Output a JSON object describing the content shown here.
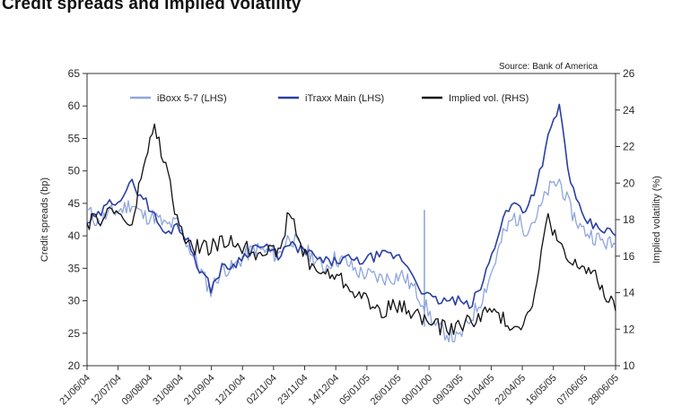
{
  "chart_data": {
    "type": "line",
    "title": "Credit spreads and implied volatility",
    "source": "Source: Bank of America",
    "ylabel_left": "Credit spreads (bp)",
    "ylabel_right": "Implied volatility (%)",
    "ylim_left": [
      20,
      65
    ],
    "ylim_right": [
      10,
      26
    ],
    "yticks_left": [
      20,
      25,
      30,
      35,
      40,
      45,
      50,
      55,
      60,
      65
    ],
    "yticks_right": [
      10,
      12,
      14,
      16,
      18,
      20,
      22,
      24,
      26
    ],
    "x_tick_labels": [
      "21/06/04",
      "12/07/04",
      "09/08/04",
      "31/08/04",
      "21/09/04",
      "12/10/04",
      "02/11/04",
      "23/11/04",
      "14/12/04",
      "05/01/05",
      "26/01/05",
      "00/01/00",
      "09/03/05",
      "01/04/05",
      "22/04/05",
      "16/05/05",
      "07/06/05",
      "28/06/05"
    ],
    "x_count": 18,
    "series": [
      {
        "name": "iBoxx 5-7 (LHS)",
        "axis": "left",
        "color": "#8fa6dc",
        "values": [
          44.0,
          42.0,
          43.5,
          44.0,
          45.0,
          43.0,
          43.0,
          41.5,
          42.0,
          38.5,
          35.0,
          31.5,
          35.0,
          35.0,
          37.0,
          38.0,
          37.5,
          37.0,
          40.0,
          38.0,
          37.0,
          35.0,
          36.5,
          36.0,
          34.5,
          34.0,
          33.5,
          33.5,
          34.0,
          32.0,
          29.5,
          26.0,
          25.0,
          24.0,
          27.0,
          30.0,
          34.5,
          40.0,
          43.0,
          41.0,
          43.0,
          47.0,
          48.5,
          44.0,
          41.0,
          40.0,
          39.0,
          38.5
        ],
        "spikes": [
          {
            "index": 30,
            "low": 26.0,
            "high": 44.0
          }
        ]
      },
      {
        "name": "iTraxx Main (LHS)",
        "axis": "left",
        "color": "#2b3fa3",
        "values": [
          42.0,
          43.0,
          45.0,
          46.0,
          48.0,
          46.0,
          43.0,
          40.0,
          42.0,
          39.0,
          35.0,
          32.0,
          35.0,
          35.5,
          37.0,
          38.5,
          38.0,
          37.0,
          38.5,
          38.0,
          37.0,
          36.0,
          36.0,
          36.5,
          36.0,
          36.5,
          37.0,
          37.0,
          36.5,
          34.0,
          31.0,
          30.0,
          30.0,
          30.0,
          29.0,
          32.0,
          37.0,
          43.0,
          45.0,
          44.0,
          48.0,
          55.0,
          60.0,
          48.0,
          43.0,
          41.5,
          41.0,
          40.0
        ]
      },
      {
        "name": "Implied vol. (RHS)",
        "axis": "right",
        "color": "#111111",
        "values": [
          17.8,
          18.0,
          18.5,
          18.3,
          17.5,
          21.0,
          23.0,
          21.0,
          18.0,
          16.5,
          16.5,
          16.5,
          16.7,
          16.8,
          16.5,
          16.2,
          16.5,
          16.0,
          18.5,
          16.5,
          15.5,
          15.0,
          15.0,
          14.5,
          14.0,
          13.5,
          13.0,
          13.2,
          13.2,
          13.0,
          12.5,
          12.2,
          12.0,
          12.2,
          12.4,
          12.8,
          13.0,
          12.5,
          12.2,
          12.5,
          14.5,
          18.3,
          16.5,
          15.5,
          15.5,
          15.0,
          14.0,
          13.0
        ]
      }
    ]
  }
}
